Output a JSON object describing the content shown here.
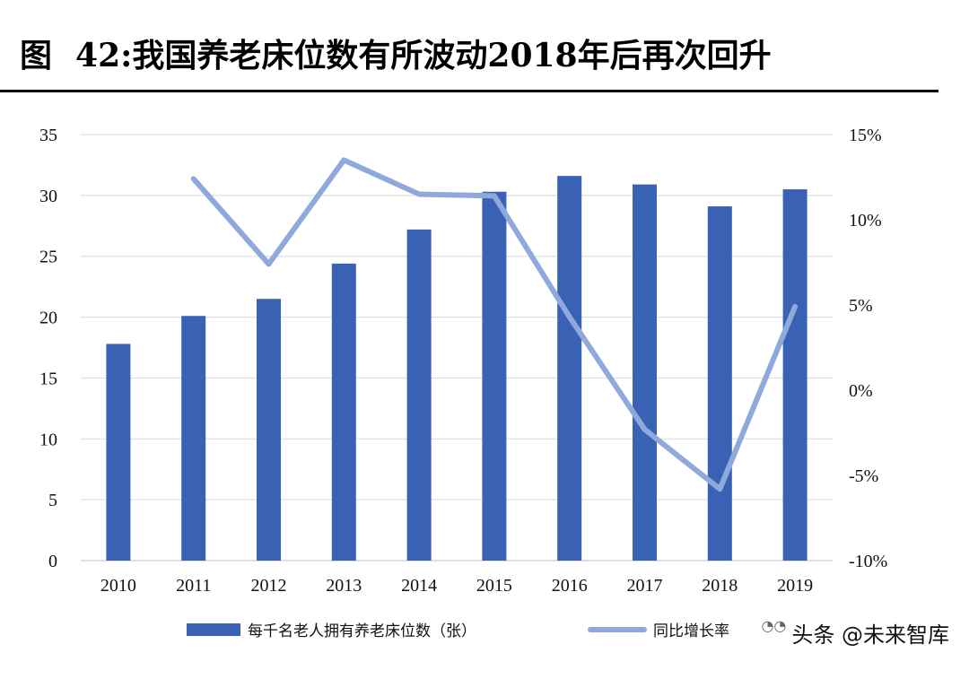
{
  "figure": {
    "label": "图",
    "title": "42:我国养老床位数有所波动2018年后再次回升"
  },
  "watermark": {
    "icon": "wechat-icon",
    "text": "头条 @未来智库"
  },
  "colors": {
    "bar": "#3a62b4",
    "line": "#8fa9dd",
    "grid": "#d9d9d9"
  },
  "chart_data": {
    "type": "bar",
    "categories": [
      "2010",
      "2011",
      "2012",
      "2013",
      "2014",
      "2015",
      "2016",
      "2017",
      "2018",
      "2019"
    ],
    "series": [
      {
        "name": "每千名老人拥有养老床位数（张）",
        "type": "bar",
        "axis": "left",
        "values": [
          17.8,
          20.1,
          21.5,
          24.4,
          27.2,
          30.3,
          31.6,
          30.9,
          29.1,
          30.5
        ]
      },
      {
        "name": "同比增长率",
        "type": "line",
        "axis": "right",
        "values": [
          null,
          12.4,
          7.4,
          13.5,
          11.5,
          11.4,
          4.3,
          -2.3,
          -5.8,
          4.9
        ]
      }
    ],
    "y_left": {
      "min": 0,
      "max": 35,
      "ticks": [
        0,
        5,
        10,
        15,
        20,
        25,
        30,
        35
      ]
    },
    "y_right": {
      "min": -10,
      "max": 15,
      "ticks": [
        "-10%",
        "-5%",
        "0%",
        "5%",
        "10%",
        "15%"
      ]
    },
    "grid": true,
    "legend_position": "bottom"
  }
}
